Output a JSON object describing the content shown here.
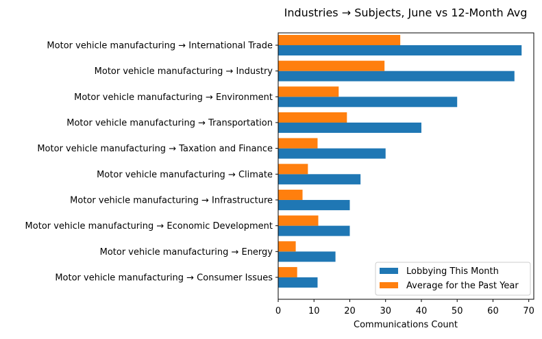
{
  "chart_data": {
    "type": "bar",
    "orientation": "horizontal",
    "title": "Industries → Subjects, June vs 12-Month Avg",
    "xlabel": "Communications Count",
    "ylabel": "",
    "xlim": [
      0,
      71.4
    ],
    "xticks": [
      0,
      10,
      20,
      30,
      40,
      50,
      60,
      70
    ],
    "grid": false,
    "legend_position": "lower-right",
    "categories": [
      "Motor vehicle manufacturing → International Trade",
      "Motor vehicle manufacturing → Industry",
      "Motor vehicle manufacturing → Environment",
      "Motor vehicle manufacturing → Transportation",
      "Motor vehicle manufacturing → Taxation and Finance",
      "Motor vehicle manufacturing → Climate",
      "Motor vehicle manufacturing → Infrastructure",
      "Motor vehicle manufacturing → Economic Development",
      "Motor vehicle manufacturing → Energy",
      "Motor vehicle manufacturing → Consumer Issues"
    ],
    "series": [
      {
        "name": "Lobbying This Month",
        "color": "#1f77b4",
        "values": [
          68,
          66,
          50,
          40,
          30,
          23,
          20,
          20,
          16,
          11
        ]
      },
      {
        "name": "Average for the Past Year",
        "color": "#ff7f0e",
        "values": [
          34.1,
          29.7,
          16.9,
          19.2,
          11.0,
          8.3,
          6.8,
          11.2,
          4.9,
          5.3
        ]
      }
    ]
  }
}
